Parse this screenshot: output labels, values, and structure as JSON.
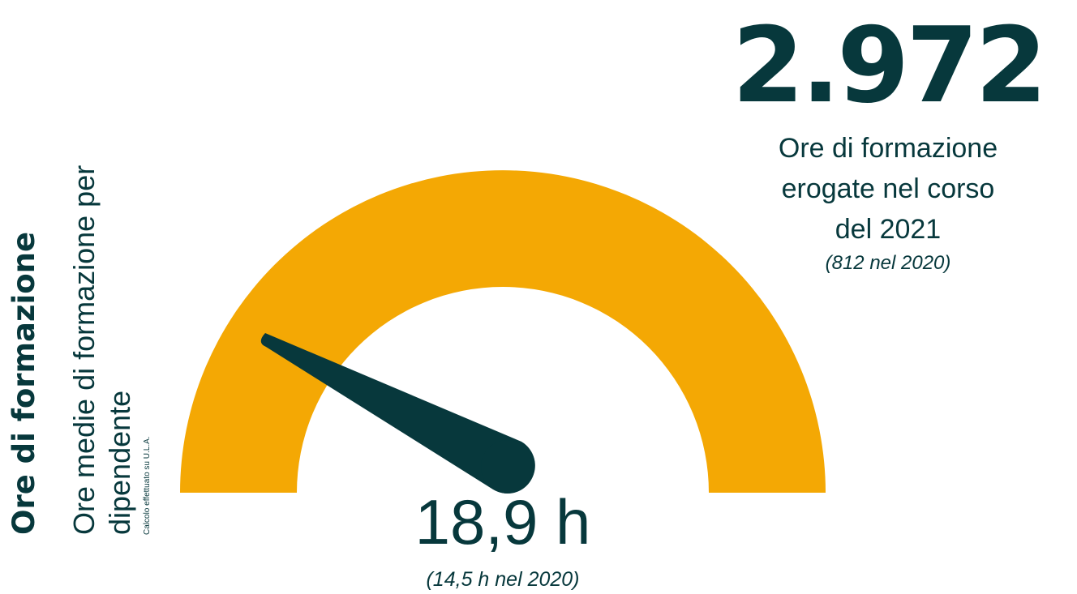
{
  "side": {
    "title": "Ore di formazione",
    "subtitle_line1": "Ore medie di formazione per",
    "subtitle_line2": "dipendente",
    "note": "Calcolo effettuato su U.L.A."
  },
  "stat": {
    "number": "2.972",
    "desc_line1": "Ore di formazione",
    "desc_line2": "erogate nel corso",
    "desc_line3": "del 2021",
    "prev": "(812 nel 2020)"
  },
  "gauge": {
    "value": "18,9 h",
    "prev": "(14,5 h nel 2020)",
    "arc_color": "#f4a804",
    "needle_color": "#07383c"
  }
}
